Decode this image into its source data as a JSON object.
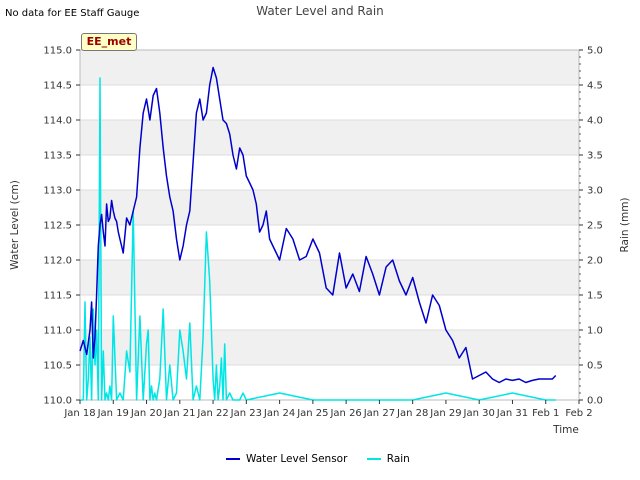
{
  "header": {
    "note": "No data for EE Staff Gauge",
    "badge": "EE_met"
  },
  "chart_data": {
    "type": "line",
    "title": "Water Level and Rain",
    "xlabel": "Time",
    "ylabel": "Water Level (cm)",
    "y2label": "Rain (mm)",
    "x_ticks": [
      "Jan 18",
      "Jan 19",
      "Jan 20",
      "Jan 21",
      "Jan 22",
      "Jan 23",
      "Jan 24",
      "Jan 25",
      "Jan 26",
      "Jan 27",
      "Jan 28",
      "Jan 29",
      "Jan 30",
      "Jan 31",
      "Feb 1",
      "Feb 2"
    ],
    "xlim": [
      0,
      15
    ],
    "ylim": [
      110.0,
      115.0
    ],
    "y_ticks": [
      "110.0",
      "110.5",
      "111.0",
      "111.5",
      "112.0",
      "112.5",
      "113.0",
      "113.5",
      "114.0",
      "114.5",
      "115.0"
    ],
    "y2lim": [
      0.0,
      5.0
    ],
    "y2_ticks": [
      "0.0",
      "0.5",
      "1.0",
      "1.5",
      "2.0",
      "2.5",
      "3.0",
      "3.5",
      "4.0",
      "4.5",
      "5.0"
    ],
    "legend": [
      "Water Level Sensor",
      "Rain"
    ],
    "legend_position": "bottom-center",
    "series": [
      {
        "name": "Water Level Sensor",
        "axis": "left",
        "color": "#0000cc",
        "x": [
          0.0,
          0.1,
          0.2,
          0.3,
          0.35,
          0.4,
          0.45,
          0.5,
          0.55,
          0.6,
          0.65,
          0.7,
          0.75,
          0.8,
          0.85,
          0.9,
          0.95,
          1.0,
          1.05,
          1.1,
          1.15,
          1.2,
          1.25,
          1.3,
          1.4,
          1.5,
          1.6,
          1.7,
          1.8,
          1.9,
          2.0,
          2.1,
          2.2,
          2.3,
          2.4,
          2.5,
          2.6,
          2.7,
          2.8,
          2.9,
          3.0,
          3.1,
          3.2,
          3.3,
          3.4,
          3.5,
          3.6,
          3.7,
          3.8,
          3.9,
          4.0,
          4.1,
          4.2,
          4.3,
          4.4,
          4.5,
          4.6,
          4.7,
          4.8,
          4.9,
          5.0,
          5.1,
          5.2,
          5.3,
          5.4,
          5.5,
          5.6,
          5.7,
          5.8,
          5.9,
          6.0,
          6.2,
          6.4,
          6.6,
          6.8,
          7.0,
          7.2,
          7.4,
          7.6,
          7.8,
          8.0,
          8.2,
          8.4,
          8.6,
          8.8,
          9.0,
          9.2,
          9.4,
          9.6,
          9.8,
          10.0,
          10.2,
          10.4,
          10.6,
          10.8,
          11.0,
          11.2,
          11.4,
          11.6,
          11.8,
          12.0,
          12.2,
          12.4,
          12.6,
          12.8,
          13.0,
          13.2,
          13.4,
          13.6,
          13.8,
          14.0,
          14.2,
          14.3
        ],
        "values": [
          110.7,
          110.85,
          110.65,
          111.0,
          111.4,
          110.6,
          110.9,
          111.5,
          112.2,
          112.5,
          112.65,
          112.4,
          112.2,
          112.8,
          112.55,
          112.6,
          112.85,
          112.7,
          112.6,
          112.55,
          112.4,
          112.3,
          112.2,
          112.1,
          112.6,
          112.5,
          112.7,
          112.9,
          113.6,
          114.1,
          114.3,
          114.0,
          114.35,
          114.45,
          114.1,
          113.6,
          113.2,
          112.9,
          112.7,
          112.3,
          112.0,
          112.2,
          112.5,
          112.7,
          113.4,
          114.1,
          114.3,
          114.0,
          114.1,
          114.5,
          114.75,
          114.6,
          114.3,
          114.0,
          113.95,
          113.8,
          113.5,
          113.3,
          113.6,
          113.5,
          113.2,
          113.1,
          113.0,
          112.8,
          112.4,
          112.5,
          112.7,
          112.3,
          112.2,
          112.1,
          112.0,
          112.45,
          112.3,
          112.0,
          112.05,
          112.3,
          112.1,
          111.6,
          111.5,
          112.1,
          111.6,
          111.8,
          111.55,
          112.05,
          111.8,
          111.5,
          111.9,
          112.0,
          111.7,
          111.5,
          111.75,
          111.4,
          111.1,
          111.5,
          111.35,
          111.0,
          110.85,
          110.6,
          110.75,
          110.3,
          110.35,
          110.4,
          110.3,
          110.25,
          110.3,
          110.28,
          110.3,
          110.25,
          110.28,
          110.3,
          110.3,
          110.3,
          110.35
        ]
      },
      {
        "name": "Rain",
        "axis": "right",
        "color": "#00e5e5",
        "x": [
          0.0,
          0.1,
          0.15,
          0.2,
          0.25,
          0.3,
          0.35,
          0.4,
          0.45,
          0.5,
          0.55,
          0.6,
          0.65,
          0.7,
          0.75,
          0.8,
          0.85,
          0.9,
          0.95,
          1.0,
          1.1,
          1.2,
          1.3,
          1.4,
          1.5,
          1.6,
          1.7,
          1.8,
          1.9,
          2.0,
          2.05,
          2.1,
          2.15,
          2.2,
          2.25,
          2.3,
          2.4,
          2.5,
          2.6,
          2.7,
          2.8,
          2.9,
          3.0,
          3.1,
          3.2,
          3.3,
          3.4,
          3.5,
          3.6,
          3.7,
          3.8,
          3.9,
          4.0,
          4.05,
          4.1,
          4.15,
          4.2,
          4.25,
          4.3,
          4.35,
          4.4,
          4.5,
          4.6,
          4.7,
          4.8,
          4.9,
          5.0,
          6.0,
          7.0,
          8.0,
          9.0,
          10.0,
          11.0,
          12.0,
          13.0,
          14.0,
          14.3
        ],
        "values": [
          0.0,
          0.0,
          1.4,
          0.0,
          0.3,
          0.9,
          0.0,
          1.3,
          0.5,
          1.0,
          0.0,
          4.6,
          0.0,
          0.7,
          0.0,
          0.1,
          0.0,
          0.2,
          0.0,
          1.2,
          0.0,
          0.1,
          0.0,
          0.7,
          0.4,
          2.7,
          0.0,
          1.2,
          0.0,
          0.8,
          1.0,
          0.0,
          0.2,
          0.0,
          0.1,
          0.0,
          0.3,
          1.3,
          0.0,
          0.5,
          0.0,
          0.1,
          1.0,
          0.7,
          0.3,
          1.1,
          0.0,
          0.2,
          0.0,
          0.9,
          2.4,
          1.7,
          0.3,
          0.0,
          0.5,
          0.0,
          0.2,
          0.6,
          0.0,
          0.8,
          0.0,
          0.1,
          0.0,
          0.0,
          0.0,
          0.1,
          0.0,
          0.1,
          0.0,
          0.0,
          0.0,
          0.0,
          0.1,
          0.0,
          0.1,
          0.0,
          0.0
        ]
      }
    ]
  }
}
